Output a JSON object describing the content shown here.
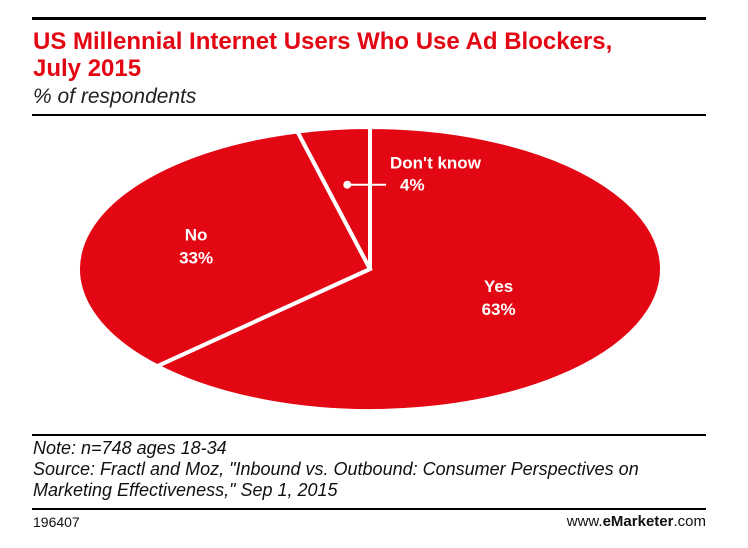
{
  "chart_data": {
    "type": "pie",
    "title_line1": "US Millennial Internet Users Who Use Ad Blockers,",
    "title_line2": "July 2015",
    "subtitle": "% of respondents",
    "slices": [
      {
        "label": "Yes",
        "value": 63,
        "value_label": "63%"
      },
      {
        "label": "No",
        "value": 33,
        "value_label": "33%"
      },
      {
        "label": "Don't know",
        "value": 4,
        "value_label": "4%"
      }
    ],
    "colors": {
      "slice": "#e30613",
      "separator": "#ffffff"
    }
  },
  "notes": {
    "note": "Note: n=748 ages 18-34",
    "source_line1": "Source: Fractl and Moz, \"Inbound vs. Outbound: Consumer Perspectives on",
    "source_line2": "Marketing Effectiveness,\" Sep 1, 2015"
  },
  "footer": {
    "chart_id": "196407",
    "brand_prefix": "www.",
    "brand_name": "eMarketer",
    "brand_suffix": ".com"
  }
}
